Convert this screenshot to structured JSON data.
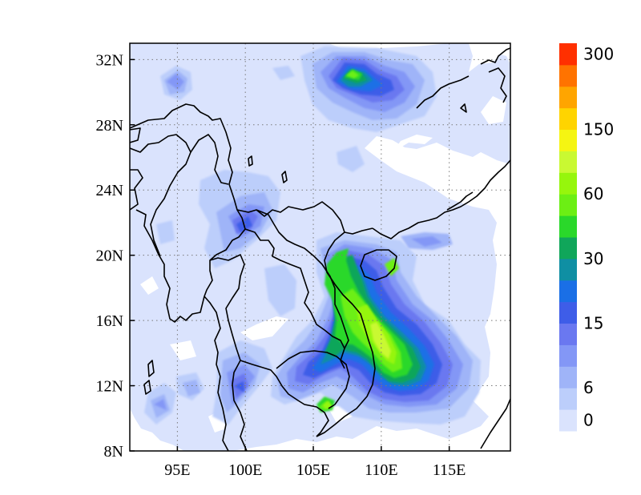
{
  "map": {
    "lon_range": [
      91.5,
      119.5
    ],
    "lat_range": [
      8,
      33
    ],
    "x_ticks": [
      {
        "lon": 95,
        "label": "95E"
      },
      {
        "lon": 100,
        "label": "100E"
      },
      {
        "lon": 105,
        "label": "105E"
      },
      {
        "lon": 110,
        "label": "110E"
      },
      {
        "lon": 115,
        "label": "115E"
      }
    ],
    "y_ticks": [
      {
        "lat": 32,
        "label": "32N"
      },
      {
        "lat": 28,
        "label": "28N"
      },
      {
        "lat": 24,
        "label": "24N"
      },
      {
        "lat": 20,
        "label": "20N"
      },
      {
        "lat": 16,
        "label": "16N"
      },
      {
        "lat": 12,
        "label": "12N"
      },
      {
        "lat": 8,
        "label": "8N"
      }
    ],
    "grid": "dotted",
    "background_fill": "#dae3fd"
  },
  "colorbar": {
    "levels": [
      0,
      3,
      6,
      9,
      12,
      15,
      20,
      25,
      30,
      40,
      50,
      60,
      80,
      100,
      150,
      200,
      250,
      300
    ],
    "colors": [
      "#dae3fd",
      "#bccefb",
      "#9fb4f8",
      "#8397f6",
      "#6a78f0",
      "#3e5de8",
      "#1a6fe6",
      "#0f8fa3",
      "#10a65a",
      "#2ad82a",
      "#6cef14",
      "#96f60c",
      "#c9f932",
      "#f5f512",
      "#ffd400",
      "#ffa500",
      "#ff7300",
      "#ff3000"
    ],
    "labels": [
      {
        "level": 0,
        "text": "0"
      },
      {
        "level": 6,
        "text": "6"
      },
      {
        "level": 15,
        "text": "15"
      },
      {
        "level": 30,
        "text": "30"
      },
      {
        "level": 60,
        "text": "60"
      },
      {
        "level": 150,
        "text": "150"
      },
      {
        "level": 300,
        "text": "300"
      }
    ]
  }
}
